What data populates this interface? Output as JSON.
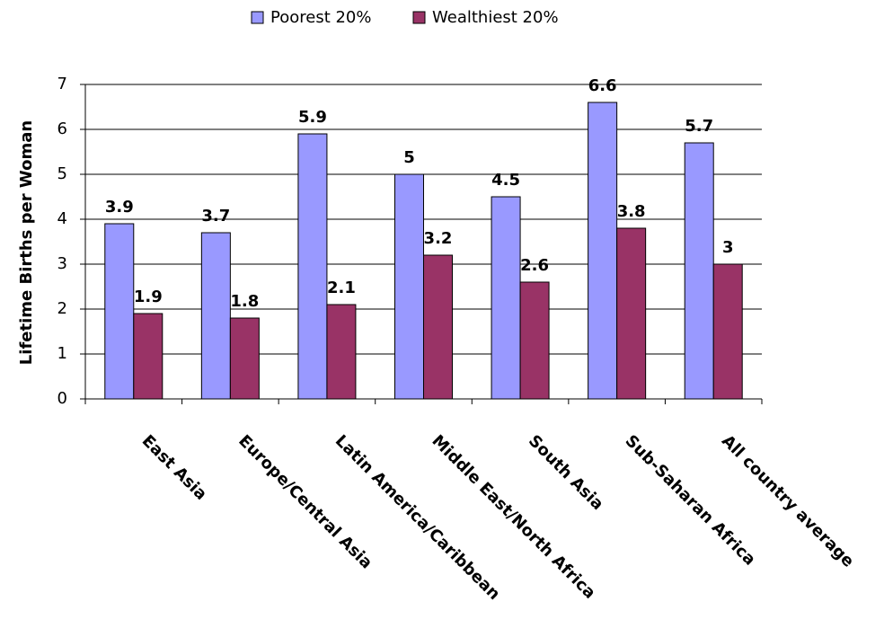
{
  "chart_data": {
    "type": "bar",
    "ylabel": "Lifetime Births per Woman",
    "categories": [
      "East Asia",
      "Europe/Central Asia",
      "Latin America/Caribbean",
      "Middle East/North Africa",
      "South Asia",
      "Sub-Saharan Africa",
      "All country average"
    ],
    "series": [
      {
        "name": "Poorest 20%",
        "color": "#9999ff",
        "values": [
          3.9,
          3.7,
          5.9,
          5,
          4.5,
          6.6,
          5.7
        ]
      },
      {
        "name": "Wealthiest 20%",
        "color": "#993366",
        "values": [
          1.9,
          1.8,
          2.1,
          3.2,
          2.6,
          3.8,
          3
        ]
      }
    ],
    "ylim": [
      0,
      7
    ],
    "yticks": [
      0,
      1,
      2,
      3,
      4,
      5,
      6,
      7
    ],
    "grid": true,
    "legend": "top"
  }
}
